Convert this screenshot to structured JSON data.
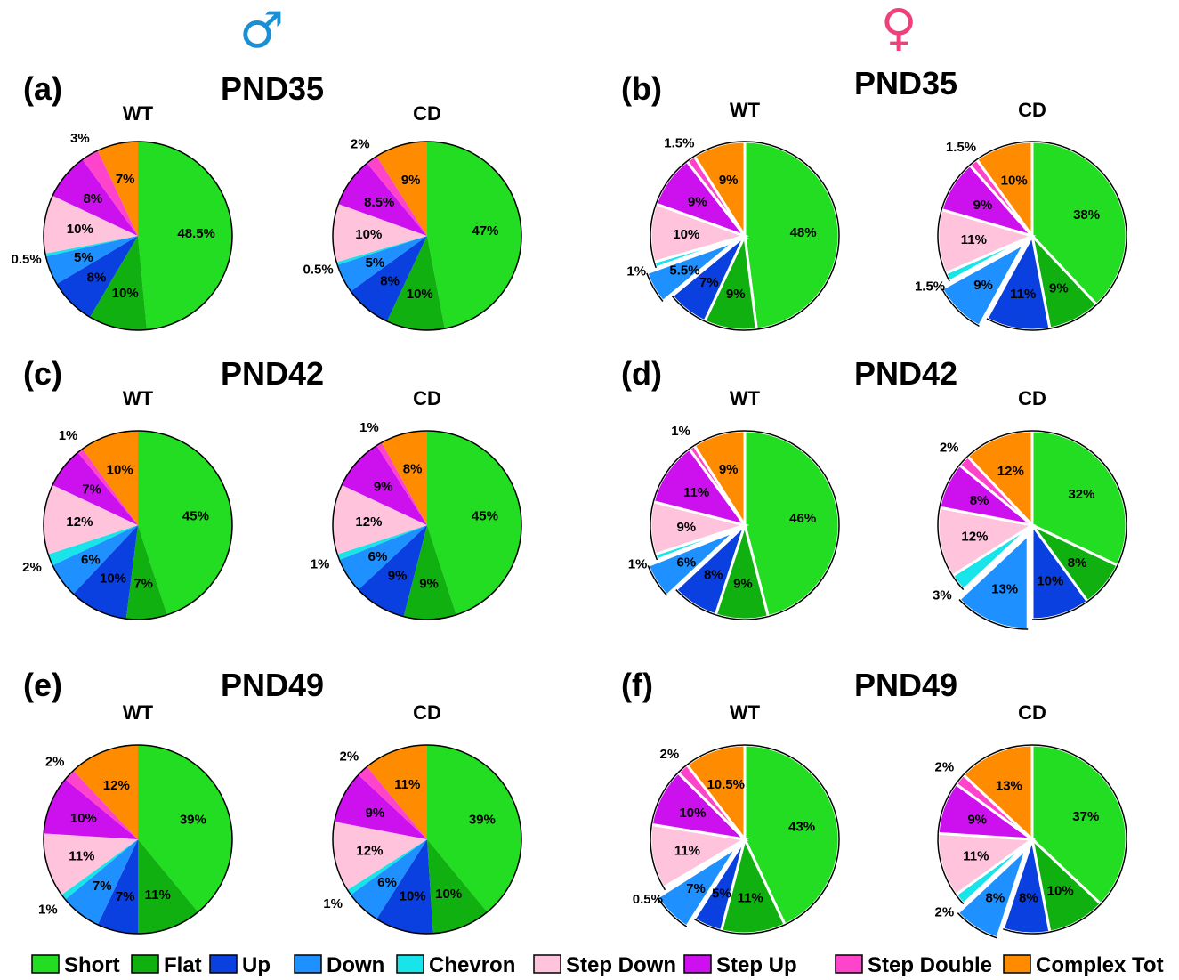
{
  "male_symbol": "♂",
  "female_symbol": "♀",
  "colors": {
    "Short": "#22dd22",
    "Flat": "#10b010",
    "Up": "#0a3fe0",
    "Down": "#1e90ff",
    "Chevron": "#18e4ea",
    "Step Down": "#ffc4dc",
    "Step Up": "#cc11ee",
    "Step Double": "#ff44cc",
    "Complex Tot": "#ff8c00"
  },
  "legend": [
    "Short",
    "Flat",
    "Up",
    "Down",
    "Chevron",
    "Step Down",
    "Step Up",
    "Step Double",
    "Complex Tot"
  ],
  "chart_data": [
    {
      "panel": "(a)",
      "title": "PND35",
      "type": "pie",
      "pies": [
        {
          "label": "WT",
          "values": [
            48.5,
            10,
            8,
            5,
            0.5,
            10,
            8,
            3,
            7
          ],
          "labels": [
            "48.5%",
            "10%",
            "8%",
            "5%",
            "0.5%",
            "10%",
            "8%",
            "3%",
            "7%"
          ],
          "exploded": []
        },
        {
          "label": "CD",
          "values": [
            47,
            10,
            8,
            5,
            0.5,
            10,
            8.5,
            2,
            9
          ],
          "labels": [
            "47%",
            "10%",
            "8%",
            "5%",
            "0.5%",
            "10%",
            "8.5%",
            "2%",
            "9%"
          ],
          "exploded": []
        }
      ]
    },
    {
      "panel": "(b)",
      "title": "PND35",
      "type": "pie",
      "pies": [
        {
          "label": "WT",
          "values": [
            48,
            9,
            7,
            5.5,
            1,
            10,
            9,
            1.5,
            9
          ],
          "labels": [
            "48%",
            "9%",
            "7%",
            "5.5%",
            "1%",
            "10%",
            "9%",
            "1.5%",
            "9%"
          ],
          "exploded": [
            "Down"
          ]
        },
        {
          "label": "CD",
          "values": [
            38,
            9,
            11,
            9,
            1.5,
            11,
            9,
            1.5,
            10
          ],
          "labels": [
            "38%",
            "9%",
            "11%",
            "9%",
            "1.5%",
            "11%",
            "9%",
            "1.5%",
            "10%"
          ],
          "exploded": [
            "Down"
          ]
        }
      ]
    },
    {
      "panel": "(c)",
      "title": "PND42",
      "type": "pie",
      "pies": [
        {
          "label": "WT",
          "values": [
            45,
            7,
            10,
            6,
            2,
            12,
            7,
            1,
            10
          ],
          "labels": [
            "45%",
            "7%",
            "10%",
            "6%",
            "2%",
            "12%",
            "7%",
            "1%",
            "10%"
          ],
          "exploded": []
        },
        {
          "label": "CD",
          "values": [
            45,
            9,
            9,
            6,
            1,
            12,
            9,
            1,
            8
          ],
          "labels": [
            "45%",
            "9%",
            "9%",
            "6%",
            "1%",
            "12%",
            "9%",
            "1%",
            "8%"
          ],
          "exploded": []
        }
      ]
    },
    {
      "panel": "(d)",
      "title": "PND42",
      "type": "pie",
      "pies": [
        {
          "label": "WT",
          "values": [
            46,
            9,
            8,
            6,
            1,
            9,
            11,
            1,
            9
          ],
          "labels": [
            "46%",
            "9%",
            "8%",
            "6%",
            "1%",
            "9%",
            "11%",
            "1%",
            "9%"
          ],
          "exploded": [
            "Down"
          ]
        },
        {
          "label": "CD",
          "values": [
            32,
            8,
            10,
            13,
            3,
            12,
            8,
            2,
            12
          ],
          "labels": [
            "32%",
            "8%",
            "10%",
            "13%",
            "3%",
            "12%",
            "8%",
            "2%",
            "12%"
          ],
          "exploded": [
            "Down"
          ]
        }
      ]
    },
    {
      "panel": "(e)",
      "title": "PND49",
      "type": "pie",
      "pies": [
        {
          "label": "WT",
          "values": [
            39,
            11,
            7,
            7,
            1,
            11,
            10,
            2,
            12
          ],
          "labels": [
            "39%",
            "11%",
            "7%",
            "7%",
            "1%",
            "11%",
            "10%",
            "2%",
            "12%"
          ],
          "exploded": []
        },
        {
          "label": "CD",
          "values": [
            39,
            10,
            10,
            6,
            1,
            12,
            9,
            2,
            11
          ],
          "labels": [
            "39%",
            "10%",
            "10%",
            "6%",
            "1%",
            "12%",
            "9%",
            "2%",
            "11%"
          ],
          "exploded": []
        }
      ]
    },
    {
      "panel": "(f)",
      "title": "PND49",
      "type": "pie",
      "pies": [
        {
          "label": "WT",
          "values": [
            43,
            11,
            5,
            7,
            0.5,
            11,
            10,
            2,
            10.5
          ],
          "labels": [
            "43%",
            "11%",
            "5%",
            "7%",
            "0.5%",
            "11%",
            "10%",
            "2%",
            "10.5%"
          ],
          "exploded": [
            "Down"
          ]
        },
        {
          "label": "CD",
          "values": [
            37,
            10,
            8,
            8,
            2,
            11,
            9,
            2,
            13
          ],
          "labels": [
            "37%",
            "10%",
            "8%",
            "8%",
            "2%",
            "11%",
            "9%",
            "2%",
            "13%"
          ],
          "exploded": [
            "Down"
          ]
        }
      ]
    }
  ]
}
